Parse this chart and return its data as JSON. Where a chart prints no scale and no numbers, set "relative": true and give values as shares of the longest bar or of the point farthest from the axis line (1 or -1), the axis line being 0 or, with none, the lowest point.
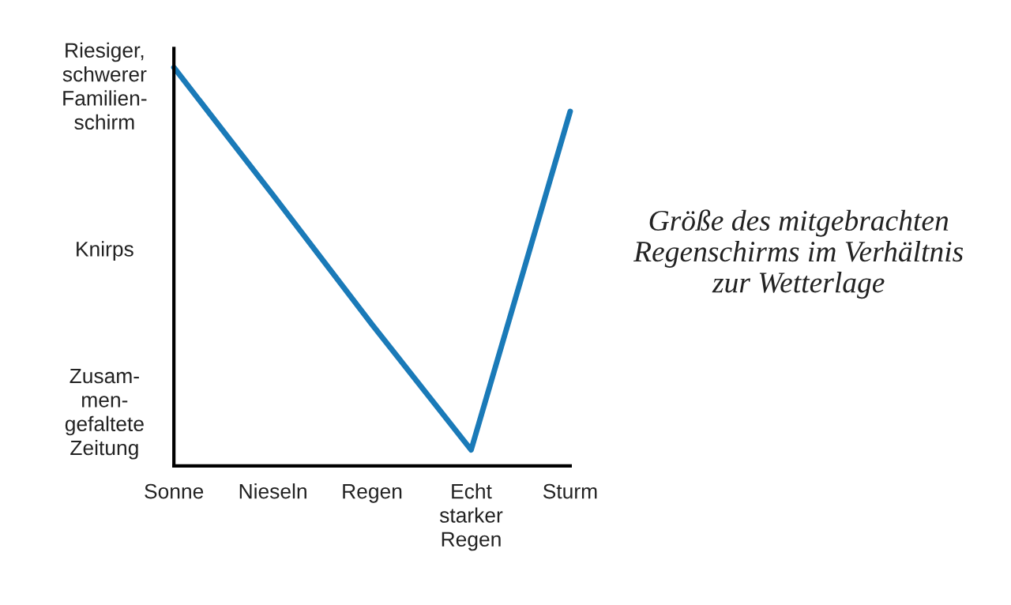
{
  "chart_data": {
    "type": "line",
    "title": "Größe des mitgebrachten\nRegenschirms im Verhältnis\nzur Wetterlage",
    "categories": [
      "Sonne",
      "Nieseln",
      "Regen",
      "Echt\nstarker\nRegen",
      "Sturm"
    ],
    "series": [
      {
        "color": "#1a7ab8",
        "values": [
          1,
          0.68,
          0.355,
          0.04,
          0.89
        ]
      }
    ],
    "relative": true,
    "annotations": [
      "Zusam-\nmen-\ngefaltete\nZeitung",
      "Knirps",
      "Riesiger,\nschwerer\nFamilien-\nschirm"
    ],
    "grid": false
  }
}
